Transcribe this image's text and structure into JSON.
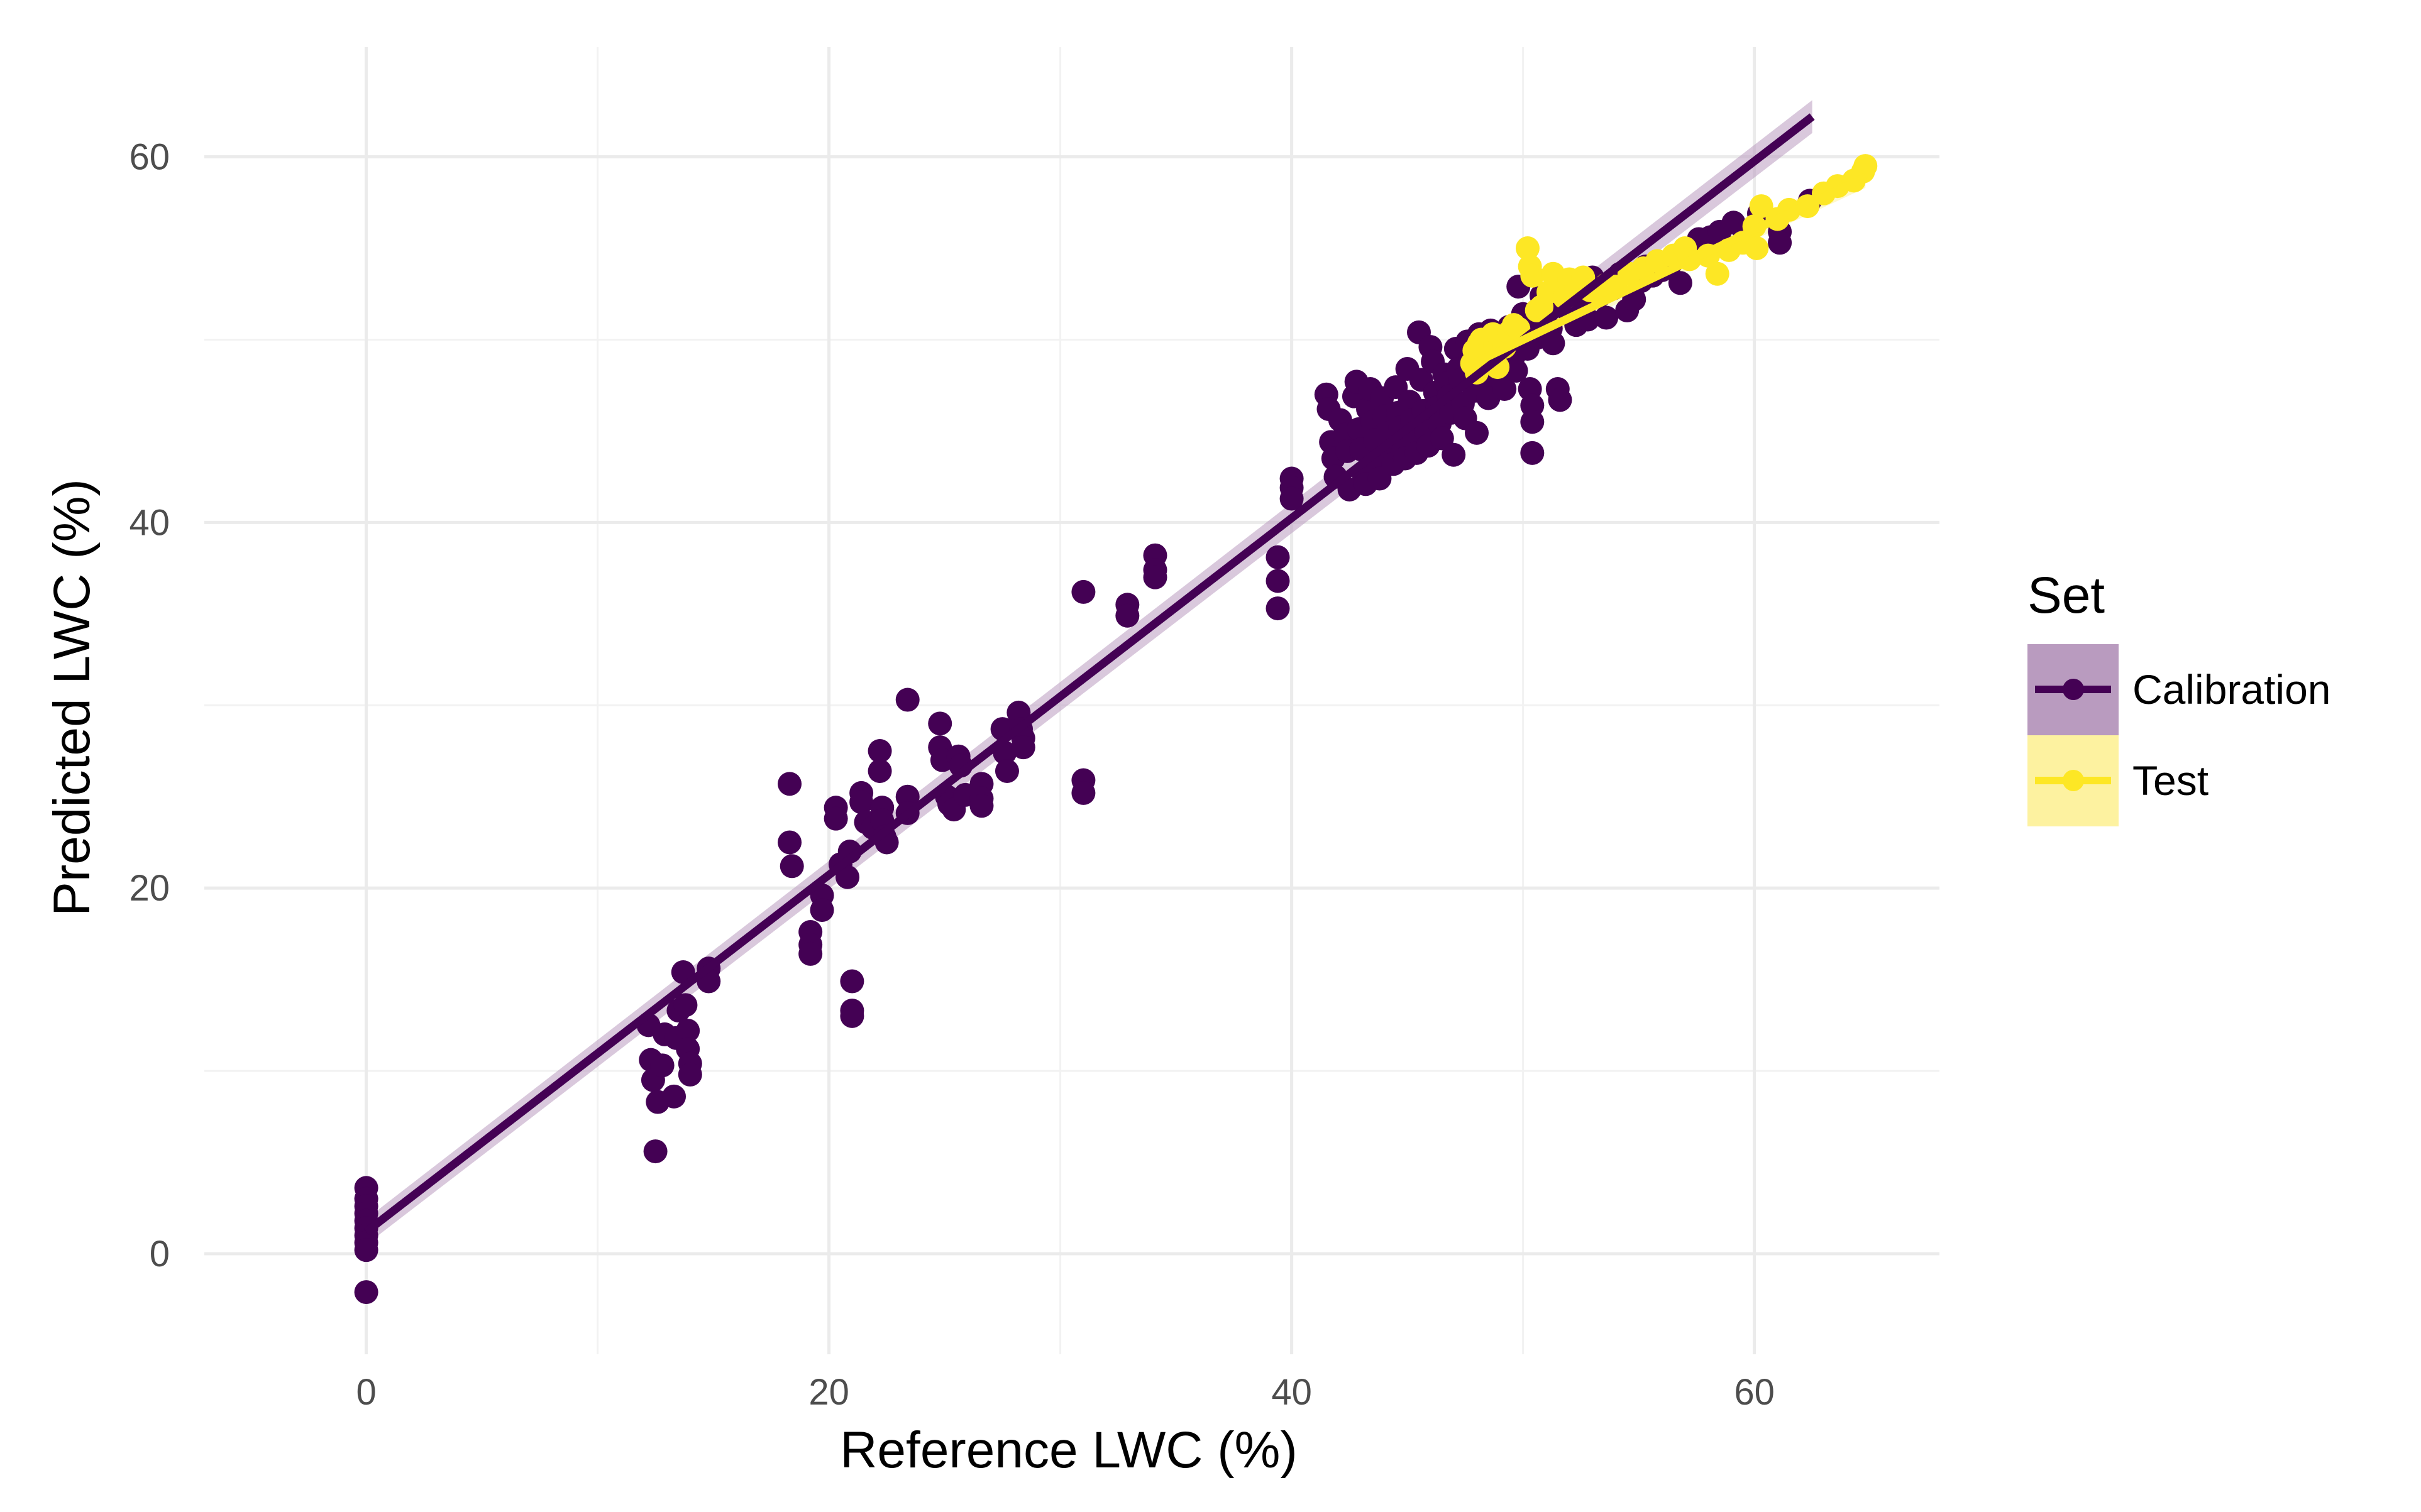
{
  "chart_data": {
    "type": "scatter",
    "title": "",
    "xlabel": "Reference LWC (%)",
    "ylabel": "Predicted LWC (%)",
    "xlim": [
      -7,
      68
    ],
    "ylim": [
      -5.5,
      66
    ],
    "x_ticks": [
      0,
      20,
      40,
      60
    ],
    "y_ticks": [
      0,
      20,
      40,
      60
    ],
    "x_tick_labels": [
      "0",
      "20",
      "40",
      "60"
    ],
    "y_tick_labels": [
      "0",
      "20",
      "40",
      "60"
    ],
    "x_minor_ticks": [
      10,
      30,
      50
    ],
    "y_minor_ticks": [
      10,
      30,
      50
    ],
    "grid": true,
    "legend": {
      "title": "Set",
      "position": "right",
      "entries": [
        "Calibration",
        "Test"
      ]
    },
    "series": [
      {
        "name": "Calibration",
        "color": "#440154",
        "fill_color": "#b99bbf",
        "fit_line": {
          "x": [
            0,
            62.5
          ],
          "y": [
            1.2,
            62.2
          ]
        },
        "points": [
          [
            0,
            3.6
          ],
          [
            0,
            3.0
          ],
          [
            0,
            2.6
          ],
          [
            0,
            2.2
          ],
          [
            0,
            1.8
          ],
          [
            0,
            1.4
          ],
          [
            0,
            1.0
          ],
          [
            0,
            0.6
          ],
          [
            0,
            0.2
          ],
          [
            0,
            -2.1
          ],
          [
            12.2,
            12.5
          ],
          [
            12.3,
            10.6
          ],
          [
            12.4,
            9.5
          ],
          [
            12.6,
            8.3
          ],
          [
            12.5,
            5.6
          ],
          [
            12.8,
            10.3
          ],
          [
            12.9,
            12.0
          ],
          [
            13.3,
            8.6
          ],
          [
            13.4,
            11.8
          ],
          [
            13.5,
            13.3
          ],
          [
            13.7,
            15.4
          ],
          [
            13.8,
            13.6
          ],
          [
            13.9,
            12.2
          ],
          [
            13.9,
            11.2
          ],
          [
            14.0,
            10.4
          ],
          [
            14.0,
            9.8
          ],
          [
            14.8,
            15.6
          ],
          [
            14.8,
            14.9
          ],
          [
            18.3,
            25.7
          ],
          [
            18.3,
            22.5
          ],
          [
            18.4,
            21.2
          ],
          [
            19.2,
            17.6
          ],
          [
            19.2,
            16.9
          ],
          [
            19.2,
            16.4
          ],
          [
            19.7,
            19.6
          ],
          [
            19.7,
            18.8
          ],
          [
            20.3,
            24.4
          ],
          [
            20.3,
            23.8
          ],
          [
            20.5,
            21.3
          ],
          [
            20.8,
            20.6
          ],
          [
            20.9,
            22.0
          ],
          [
            21.0,
            14.9
          ],
          [
            21.0,
            13.3
          ],
          [
            21.0,
            13.0
          ],
          [
            21.4,
            25.2
          ],
          [
            21.4,
            24.7
          ],
          [
            21.6,
            23.6
          ],
          [
            21.9,
            23.3
          ],
          [
            22.2,
            27.5
          ],
          [
            22.2,
            26.4
          ],
          [
            22.3,
            24.4
          ],
          [
            22.3,
            23.7
          ],
          [
            22.4,
            22.8
          ],
          [
            22.5,
            22.5
          ],
          [
            23.4,
            30.3
          ],
          [
            23.4,
            25.0
          ],
          [
            23.4,
            24.1
          ],
          [
            24.8,
            29.0
          ],
          [
            24.8,
            27.7
          ],
          [
            24.9,
            27.0
          ],
          [
            25.1,
            25.0
          ],
          [
            25.2,
            24.6
          ],
          [
            25.4,
            24.3
          ],
          [
            25.6,
            27.2
          ],
          [
            25.7,
            26.7
          ],
          [
            25.9,
            25.1
          ],
          [
            26.6,
            25.7
          ],
          [
            26.6,
            24.9
          ],
          [
            26.6,
            24.5
          ],
          [
            27.5,
            28.7
          ],
          [
            27.6,
            27.4
          ],
          [
            27.7,
            26.4
          ],
          [
            28.2,
            29.6
          ],
          [
            28.3,
            28.7
          ],
          [
            28.4,
            28.2
          ],
          [
            28.4,
            27.7
          ],
          [
            31.0,
            36.2
          ],
          [
            31.0,
            25.9
          ],
          [
            31.0,
            25.2
          ],
          [
            32.9,
            35.5
          ],
          [
            32.9,
            34.9
          ],
          [
            34.1,
            38.2
          ],
          [
            34.1,
            37.4
          ],
          [
            34.1,
            37.0
          ],
          [
            39.4,
            38.1
          ],
          [
            39.4,
            36.8
          ],
          [
            39.4,
            35.3
          ],
          [
            40.0,
            42.4
          ],
          [
            40.0,
            41.9
          ],
          [
            40.0,
            41.3
          ],
          [
            41.5,
            47.0
          ],
          [
            41.6,
            46.2
          ],
          [
            41.7,
            44.4
          ],
          [
            41.8,
            43.5
          ],
          [
            41.9,
            42.5
          ],
          [
            42.1,
            45.6
          ],
          [
            42.3,
            44.8
          ],
          [
            42.4,
            43.9
          ],
          [
            42.5,
            41.8
          ],
          [
            42.7,
            46.9
          ],
          [
            42.8,
            47.7
          ],
          [
            42.9,
            45.1
          ],
          [
            43.0,
            44.0
          ],
          [
            43.1,
            42.7
          ],
          [
            43.2,
            42.1
          ],
          [
            43.3,
            46.2
          ],
          [
            43.4,
            47.3
          ],
          [
            43.5,
            45.5
          ],
          [
            43.6,
            44.5
          ],
          [
            43.7,
            43.3
          ],
          [
            43.8,
            42.4
          ],
          [
            43.9,
            46.8
          ],
          [
            44.0,
            45.8
          ],
          [
            44.2,
            44.9
          ],
          [
            44.3,
            43.9
          ],
          [
            44.4,
            43.2
          ],
          [
            44.5,
            47.4
          ],
          [
            44.6,
            46.0
          ],
          [
            44.7,
            45.2
          ],
          [
            44.8,
            44.3
          ],
          [
            44.9,
            43.5
          ],
          [
            45.0,
            48.4
          ],
          [
            45.1,
            46.6
          ],
          [
            45.2,
            45.6
          ],
          [
            45.3,
            44.7
          ],
          [
            45.4,
            43.8
          ],
          [
            45.5,
            50.4
          ],
          [
            45.6,
            47.8
          ],
          [
            45.7,
            46.1
          ],
          [
            45.8,
            45.0
          ],
          [
            45.9,
            44.2
          ],
          [
            46.0,
            49.6
          ],
          [
            46.1,
            48.8
          ],
          [
            46.2,
            47.1
          ],
          [
            46.3,
            46.3
          ],
          [
            46.4,
            45.4
          ],
          [
            46.5,
            44.6
          ],
          [
            46.6,
            48.1
          ],
          [
            46.7,
            47.6
          ],
          [
            46.8,
            46.9
          ],
          [
            46.9,
            46.0
          ],
          [
            47.0,
            43.7
          ],
          [
            47.1,
            49.5
          ],
          [
            47.2,
            48.4
          ],
          [
            47.3,
            47.8
          ],
          [
            47.4,
            46.5
          ],
          [
            47.5,
            45.7
          ],
          [
            47.6,
            49.9
          ],
          [
            47.7,
            49.0
          ],
          [
            47.8,
            48.1
          ],
          [
            47.9,
            47.2
          ],
          [
            48.0,
            44.9
          ],
          [
            48.1,
            50.3
          ],
          [
            48.2,
            49.4
          ],
          [
            48.3,
            48.7
          ],
          [
            48.4,
            47.5
          ],
          [
            48.5,
            46.8
          ],
          [
            48.6,
            50.5
          ],
          [
            48.8,
            49.6
          ],
          [
            49.0,
            48.8
          ],
          [
            49.1,
            47.9
          ],
          [
            49.2,
            47.3
          ],
          [
            49.4,
            50.7
          ],
          [
            49.5,
            49.8
          ],
          [
            49.6,
            49.1
          ],
          [
            49.7,
            48.3
          ],
          [
            49.8,
            52.9
          ],
          [
            50.0,
            51.4
          ],
          [
            50.1,
            50.6
          ],
          [
            50.2,
            49.5
          ],
          [
            50.3,
            47.3
          ],
          [
            50.4,
            46.4
          ],
          [
            50.4,
            45.5
          ],
          [
            50.4,
            43.8
          ],
          [
            50.5,
            51.1
          ],
          [
            50.6,
            50.1
          ],
          [
            50.8,
            52.4
          ],
          [
            51.0,
            51.8
          ],
          [
            51.2,
            50.6
          ],
          [
            51.3,
            49.8
          ],
          [
            51.5,
            47.3
          ],
          [
            51.6,
            46.7
          ],
          [
            51.8,
            52.3
          ],
          [
            52.0,
            51.5
          ],
          [
            52.3,
            50.8
          ],
          [
            52.6,
            52.1
          ],
          [
            52.8,
            51.1
          ],
          [
            53.0,
            53.4
          ],
          [
            53.3,
            52.4
          ],
          [
            53.6,
            51.2
          ],
          [
            53.9,
            52.8
          ],
          [
            54.2,
            53.6
          ],
          [
            54.5,
            51.6
          ],
          [
            54.8,
            52.2
          ],
          [
            55.1,
            53.2
          ],
          [
            55.3,
            54.0
          ],
          [
            55.6,
            53.5
          ],
          [
            56.0,
            53.8
          ],
          [
            56.4,
            54.2
          ],
          [
            56.8,
            53.1
          ],
          [
            57.2,
            54.9
          ],
          [
            57.6,
            55.5
          ],
          [
            58.1,
            55.6
          ],
          [
            58.5,
            55.9
          ],
          [
            59.1,
            56.4
          ],
          [
            59.6,
            55.8
          ],
          [
            60.2,
            56.9
          ],
          [
            61.1,
            55.9
          ],
          [
            61.1,
            55.3
          ],
          [
            62.4,
            57.6
          ]
        ]
      },
      {
        "name": "Test",
        "color": "#fde725",
        "fill_color": "#fdf2a0",
        "fit_line": {
          "x": [
            47.7,
            64.8
          ],
          "y": [
            48.6,
            58.9
          ]
        },
        "points": [
          [
            47.8,
            48.7
          ],
          [
            47.9,
            49.4
          ],
          [
            48.0,
            48.2
          ],
          [
            48.1,
            49.8
          ],
          [
            48.2,
            50.0
          ],
          [
            48.3,
            49.1
          ],
          [
            48.4,
            48.8
          ],
          [
            48.6,
            49.5
          ],
          [
            48.7,
            50.3
          ],
          [
            48.8,
            49.7
          ],
          [
            48.9,
            48.5
          ],
          [
            49.0,
            50.1
          ],
          [
            49.2,
            49.6
          ],
          [
            49.4,
            50.4
          ],
          [
            49.6,
            50.8
          ],
          [
            49.8,
            50.6
          ],
          [
            50.2,
            55.0
          ],
          [
            50.3,
            54.0
          ],
          [
            50.4,
            53.5
          ],
          [
            50.6,
            51.6
          ],
          [
            50.8,
            51.8
          ],
          [
            51.1,
            52.6
          ],
          [
            51.3,
            53.6
          ],
          [
            51.6,
            53.2
          ],
          [
            51.8,
            52.3
          ],
          [
            52.0,
            53.3
          ],
          [
            52.3,
            52.8
          ],
          [
            52.6,
            53.4
          ],
          [
            52.9,
            52.7
          ],
          [
            53.2,
            52.6
          ],
          [
            53.6,
            53.0
          ],
          [
            54.0,
            52.9
          ],
          [
            54.6,
            53.6
          ],
          [
            55.2,
            53.9
          ],
          [
            55.8,
            54.3
          ],
          [
            56.5,
            54.6
          ],
          [
            57.0,
            55.0
          ],
          [
            57.2,
            54.4
          ],
          [
            58.0,
            54.6
          ],
          [
            58.4,
            53.6
          ],
          [
            58.9,
            54.9
          ],
          [
            59.5,
            55.3
          ],
          [
            60.0,
            56.2
          ],
          [
            60.1,
            55.0
          ],
          [
            60.3,
            57.3
          ],
          [
            61.0,
            56.6
          ],
          [
            61.5,
            57.1
          ],
          [
            62.3,
            57.3
          ],
          [
            63.0,
            58.0
          ],
          [
            63.6,
            58.4
          ],
          [
            64.3,
            58.7
          ],
          [
            64.7,
            59.2
          ],
          [
            64.8,
            59.5
          ]
        ]
      }
    ]
  }
}
